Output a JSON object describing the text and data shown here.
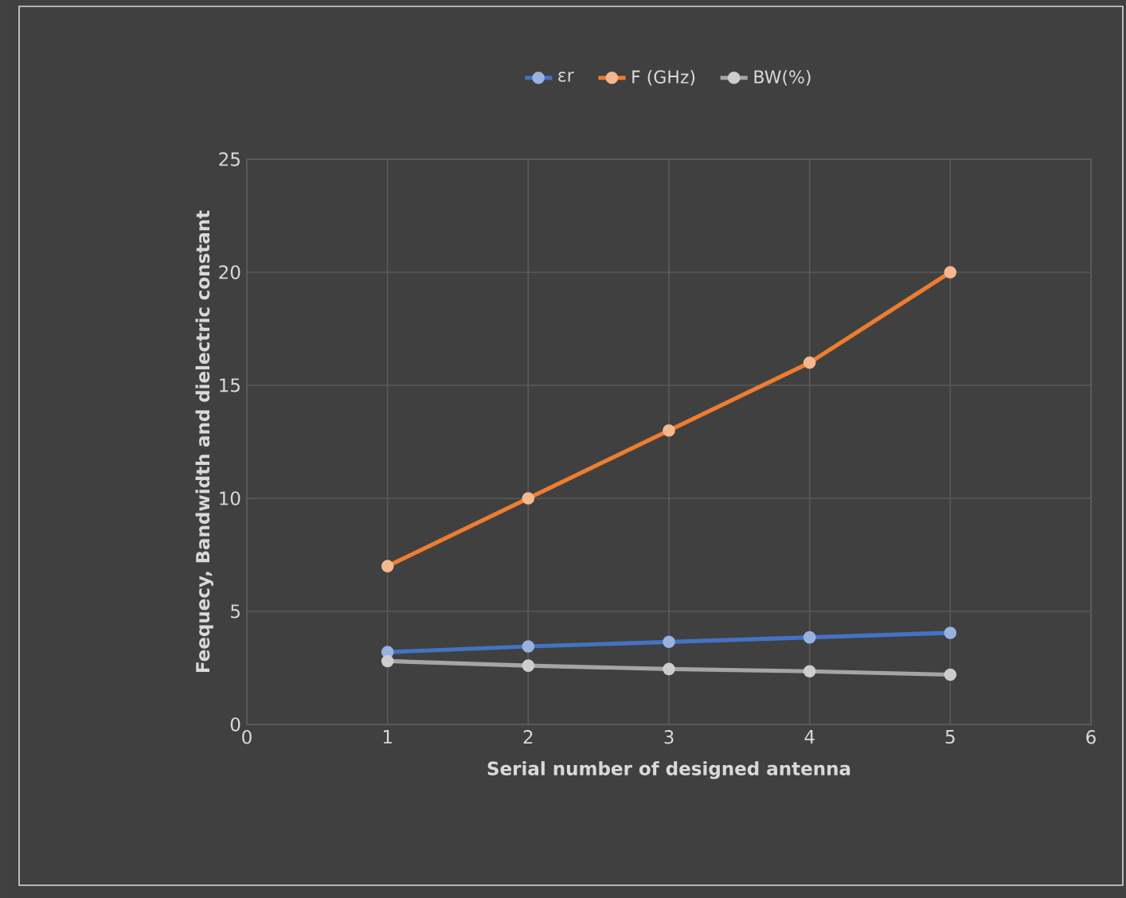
{
  "chart_data": {
    "type": "line",
    "xlabel": "Serial number of designed antenna",
    "ylabel": "Feequecy, Bandwidth and dielectric constant",
    "x": [
      1,
      2,
      3,
      4,
      5
    ],
    "series": [
      {
        "name": "εr",
        "color": "#4472c4",
        "values": [
          3.2,
          3.45,
          3.65,
          3.85,
          4.05
        ]
      },
      {
        "name": "F (GHz)",
        "color": "#ed7d31",
        "values": [
          7,
          10,
          13,
          16,
          20
        ]
      },
      {
        "name": "BW(%)",
        "color": "#a5a5a5",
        "values": [
          2.8,
          2.6,
          2.45,
          2.35,
          2.2
        ]
      }
    ],
    "xlim": [
      0,
      6
    ],
    "xticks": [
      0,
      1,
      2,
      3,
      4,
      5,
      6
    ],
    "ylim": [
      0,
      25
    ],
    "yticks": [
      0,
      5,
      10,
      15,
      20,
      25
    ],
    "grid": true,
    "legend": "top",
    "marker": "circle",
    "line_style": "solid"
  }
}
